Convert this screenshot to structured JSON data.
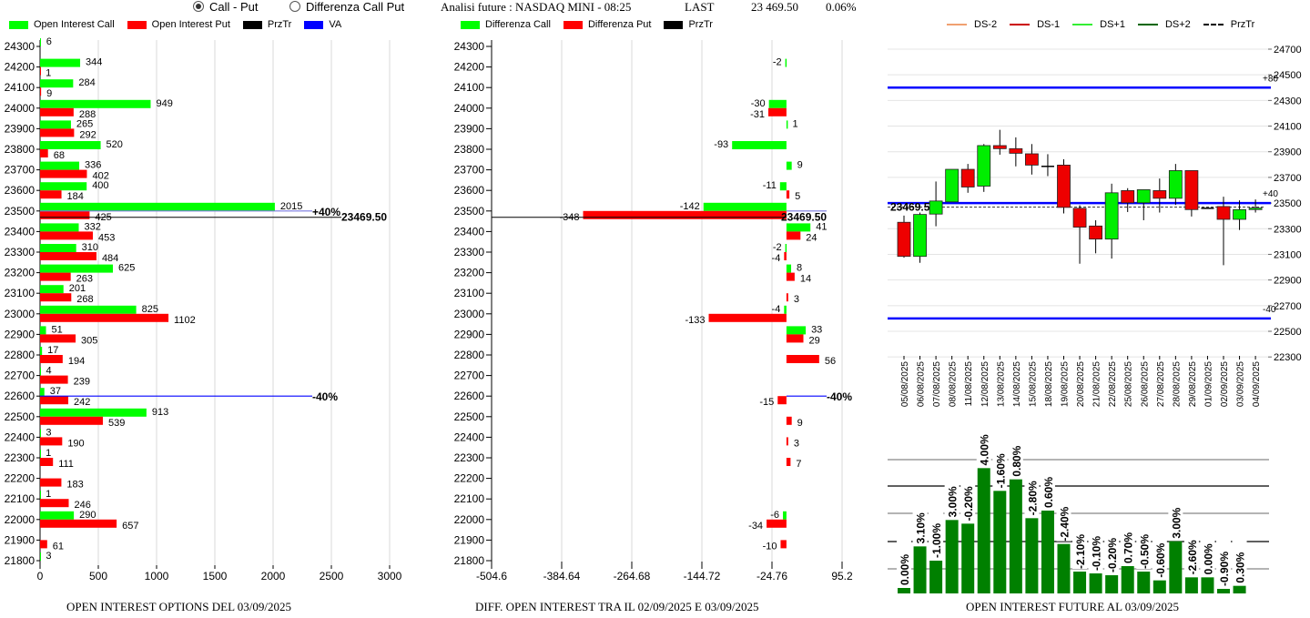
{
  "header": {
    "radio_call_put": "Call - Put",
    "radio_diff": "Differenza Call Put",
    "analysis": "Analisi future : NASDAQ MINI - 08:25",
    "last_label": "LAST",
    "last_value": "23 469.50",
    "change": "0.06%"
  },
  "legend_left": [
    "Open Interest Call",
    "Open Interest Put",
    "PrzTr",
    "VA"
  ],
  "legend_mid": [
    "Differenza Call",
    "Differenza Put",
    "PrzTr"
  ],
  "legend_right": [
    "DS-2",
    "DS-1",
    "DS+1",
    "DS+2",
    "PrzTr"
  ],
  "colors": {
    "call": "#00ff00",
    "put": "#ff0000",
    "przTr": "#000000",
    "va": "#0000ff",
    "ds_minus2": "#f0a070",
    "ds_minus1": "#cc0000",
    "ds_plus1": "#33ee33",
    "ds_plus2": "#006600",
    "oi_bar": "#008000"
  },
  "chart_data": [
    {
      "type": "bar",
      "orientation": "horizontal",
      "title": "OPEN INTEREST OPTIONS DEL 03/09/2025",
      "categories": [
        24300,
        24200,
        24100,
        24000,
        23900,
        23800,
        23700,
        23600,
        23500,
        23400,
        23300,
        23200,
        23100,
        23000,
        22900,
        22800,
        22700,
        22600,
        22500,
        22400,
        22300,
        22200,
        22100,
        22000,
        21900,
        21800
      ],
      "series": [
        {
          "name": "Open Interest Call",
          "values": [
            6,
            344,
            284,
            949,
            265,
            520,
            336,
            400,
            2015,
            332,
            310,
            625,
            201,
            825,
            51,
            17,
            4,
            37,
            913,
            3,
            1,
            null,
            1,
            290,
            null,
            3
          ]
        },
        {
          "name": "Open Interest Put",
          "values": [
            null,
            1,
            9,
            288,
            292,
            68,
            402,
            184,
            425,
            453,
            484,
            263,
            268,
            1102,
            305,
            194,
            239,
            242,
            539,
            190,
            111,
            183,
            246,
            657,
            61,
            null
          ]
        }
      ],
      "xlim": [
        0,
        3000
      ],
      "xticks": [
        "0",
        "500",
        "1000",
        "1500",
        "2000",
        "2500",
        "3000"
      ],
      "przTr": {
        "value": 23469.5,
        "label": "23469.50"
      },
      "va_lines": [
        {
          "strike": 23500,
          "label": "+40%"
        },
        {
          "strike": 22600,
          "label": "-40%"
        }
      ]
    },
    {
      "type": "bar",
      "orientation": "horizontal",
      "title": "DIFF. OPEN INTEREST TRA IL 02/09/2025 E 03/09/2025",
      "categories": [
        24300,
        24200,
        24100,
        24000,
        23900,
        23800,
        23700,
        23600,
        23500,
        23400,
        23300,
        23200,
        23100,
        23000,
        22900,
        22800,
        22700,
        22600,
        22500,
        22400,
        22300,
        22200,
        22100,
        22000,
        21900,
        21800
      ],
      "series": [
        {
          "name": "Differenza Call",
          "values": [
            null,
            -2,
            null,
            -30,
            1,
            -93,
            9,
            -11,
            -142,
            41,
            -2,
            8,
            null,
            -4,
            33,
            null,
            null,
            null,
            null,
            null,
            null,
            null,
            null,
            -6,
            null,
            null
          ]
        },
        {
          "name": "Differenza Put",
          "values": [
            null,
            null,
            null,
            -31,
            null,
            null,
            null,
            5,
            -348,
            24,
            -4,
            14,
            3,
            -133,
            29,
            56,
            null,
            -15,
            9,
            3,
            7,
            null,
            null,
            -34,
            -10,
            null
          ]
        }
      ],
      "xlim": [
        -504.6,
        95.2
      ],
      "xticks": [
        "-504.6",
        "-384.64",
        "-264.68",
        "-144.72",
        "-24.76",
        "95.2"
      ],
      "przTr": {
        "value": 23469.5,
        "label": "23469.50"
      },
      "va_lines": [
        {
          "strike": 23500,
          "label": ""
        },
        {
          "strike": 22600,
          "label": "-40%"
        }
      ]
    },
    {
      "type": "candlestick",
      "dates": [
        "05/08/2025",
        "06/08/2025",
        "07/08/2025",
        "08/08/2025",
        "11/08/2025",
        "12/08/2025",
        "13/08/2025",
        "14/08/2025",
        "15/08/2025",
        "18/08/2025",
        "19/08/2025",
        "20/08/2025",
        "21/08/2025",
        "22/08/2025",
        "25/08/2025",
        "26/08/2025",
        "27/08/2025",
        "28/08/2025",
        "29/08/2025",
        "01/09/2025",
        "02/09/2025",
        "03/09/2025",
        "04/09/2025"
      ],
      "ohlc": [
        [
          23350,
          23402,
          23074,
          23084
        ],
        [
          23084,
          23426,
          23034,
          23411
        ],
        [
          23414,
          23668,
          23319,
          23516
        ],
        [
          23509,
          23763,
          23509,
          23763
        ],
        [
          23763,
          23805,
          23580,
          23625
        ],
        [
          23632,
          23960,
          23587,
          23948
        ],
        [
          23948,
          24071,
          23877,
          23924
        ],
        [
          23924,
          24012,
          23786,
          23888
        ],
        [
          23884,
          23960,
          23722,
          23796
        ],
        [
          23786,
          23881,
          23710,
          23786
        ],
        [
          23796,
          23841,
          23419,
          23466
        ],
        [
          23459,
          23483,
          23027,
          23312
        ],
        [
          23321,
          23366,
          23108,
          23219
        ],
        [
          23219,
          23651,
          23067,
          23580
        ],
        [
          23597,
          23616,
          23430,
          23502
        ],
        [
          23502,
          23604,
          23366,
          23604
        ],
        [
          23597,
          23691,
          23426,
          23537
        ],
        [
          23537,
          23805,
          23485,
          23753
        ],
        [
          23753,
          23753,
          23395,
          23449
        ],
        [
          23459,
          23462,
          23456,
          23459
        ],
        [
          23473,
          23549,
          23015,
          23373
        ],
        [
          23373,
          23521,
          23290,
          23449
        ],
        [
          23449,
          23528,
          23426,
          23461
        ]
      ],
      "ylim": [
        22300,
        24700
      ],
      "yticks": [
        "24700",
        "24500",
        "24300",
        "24100",
        "23900",
        "23700",
        "23500",
        "23300",
        "23100",
        "22900",
        "22700",
        "22500",
        "22300"
      ],
      "levels": [
        {
          "value": 24400,
          "label": "+80"
        },
        {
          "value": 23500,
          "label": "+40"
        },
        {
          "value": 22600,
          "label": "-40"
        }
      ],
      "przTr": {
        "value": 23469.5,
        "label": "23469.5"
      }
    },
    {
      "type": "bar",
      "title": "OPEN INTEREST FUTURE AL 03/09/2025",
      "categories": [
        "05/08/2025",
        "06/08/2025",
        "07/08/2025",
        "08/08/2025",
        "11/08/2025",
        "12/08/2025",
        "13/08/2025",
        "14/08/2025",
        "15/08/2025",
        "18/08/2025",
        "19/08/2025",
        "20/08/2025",
        "21/08/2025",
        "22/08/2025",
        "25/08/2025",
        "26/08/2025",
        "27/08/2025",
        "28/08/2025",
        "29/08/2025",
        "01/09/2025",
        "02/09/2025",
        "03/09/2025"
      ],
      "values_relative": [
        18,
        155,
        108,
        242,
        230,
        413,
        338,
        376,
        248,
        273,
        163,
        72,
        66,
        60,
        90,
        72,
        43,
        172,
        53,
        53,
        15,
        25
      ],
      "labels": [
        "0.00%",
        "3.10%",
        "-1.00%",
        "3.00%",
        "-0.20%",
        "4.00%",
        "-1.60%",
        "0.80%",
        "-2.80%",
        "0.60%",
        "-2.40%",
        "-2.10%",
        "-0.10%",
        "-0.20%",
        "0.70%",
        "-0.50%",
        "-0.60%",
        "3.00%",
        "-2.60%",
        "0.00%",
        "-0.90%",
        "0.30%"
      ]
    }
  ]
}
